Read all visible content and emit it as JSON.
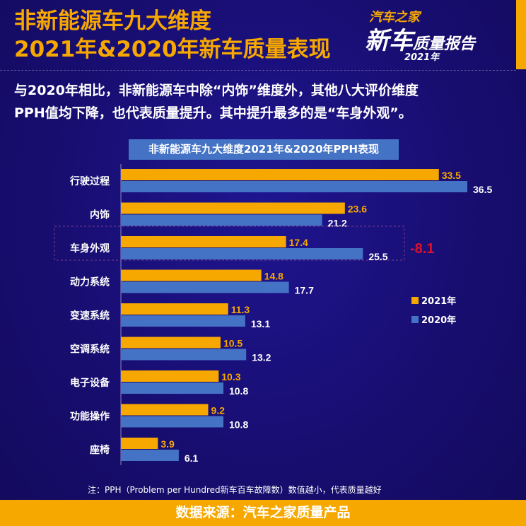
{
  "header": {
    "title_line1": "非新能源车九大维度",
    "title_line2": "2021年&2020年新车质量表现",
    "logo": {
      "line1": "汽车之家",
      "line2": "新车",
      "line2b": "质量报告",
      "line3": "2021年"
    }
  },
  "description": {
    "line1": "与2020年相比，非新能源车中除“内饰”维度外，其他八大评价维度",
    "line2": "PPH值均下降，也代表质量提升。其中提升最多的是“车身外观”。"
  },
  "note": "注：PPH（Problem per Hundred新车百车故障数）数值越小，代表质量越好",
  "footer": "数据来源：汽车之家质量产品",
  "colors": {
    "2021": "#f7a800",
    "2020": "#4472c4",
    "highlight": "#e0102a"
  },
  "chart_data": {
    "type": "bar",
    "orientation": "horizontal",
    "title": "非新能源车九大维度2021年&2020年PPH表现",
    "categories": [
      "行驶过程",
      "内饰",
      "车身外观",
      "动力系统",
      "变速系统",
      "空调系统",
      "电子设备",
      "功能操作",
      "座椅"
    ],
    "series": [
      {
        "name": "2021年",
        "values": [
          33.5,
          23.6,
          17.4,
          14.8,
          11.3,
          10.5,
          10.3,
          9.2,
          3.9
        ]
      },
      {
        "name": "2020年",
        "values": [
          36.5,
          21.2,
          25.5,
          17.7,
          13.1,
          13.2,
          10.8,
          10.8,
          6.1
        ]
      }
    ],
    "annotation": {
      "category": "车身外观",
      "text": "-8.1"
    },
    "legend": "right",
    "grid": false,
    "xlim": [
      0,
      36.5
    ]
  }
}
